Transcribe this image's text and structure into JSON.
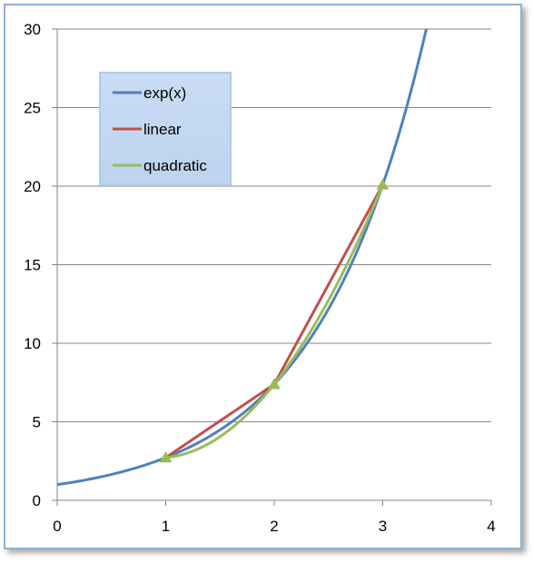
{
  "chart_data": {
    "type": "line",
    "title": "",
    "xlabel": "",
    "ylabel": "",
    "xlim": [
      0,
      4
    ],
    "ylim": [
      0,
      30
    ],
    "x_ticks": [
      "0",
      "1",
      "2",
      "3",
      "4"
    ],
    "y_ticks": [
      "0",
      "5",
      "10",
      "15",
      "20",
      "25",
      "30"
    ],
    "grid": "horizontal",
    "legend_position": "top-left",
    "series": [
      {
        "name": "exp(x)",
        "color": "#4f81bd",
        "curve": "exp(x)",
        "x_range": [
          0,
          3.401
        ]
      },
      {
        "name": "linear",
        "color": "#c0504d",
        "x": [
          1,
          2,
          3
        ],
        "y": [
          2.718,
          7.389,
          20.086
        ]
      },
      {
        "name": "quadratic",
        "color": "#9bbb59",
        "marker": "triangle",
        "x": [
          1,
          2,
          3
        ],
        "y": [
          2.718,
          7.389,
          20.086
        ],
        "interpolation": "quadratic"
      }
    ]
  }
}
